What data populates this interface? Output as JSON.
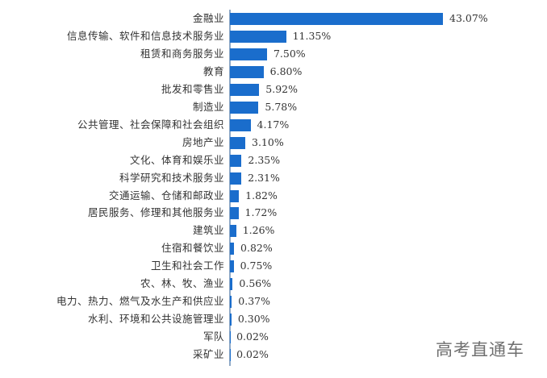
{
  "chart_data": {
    "type": "bar",
    "orientation": "horizontal",
    "title": "",
    "xlabel": "",
    "ylabel": "",
    "grid": false,
    "legend": null,
    "bar_color": "#1a6dcc",
    "value_format": "percent",
    "categories": [
      "金融业",
      "信息传输、软件和信息技术服务业",
      "租赁和商务服务业",
      "教育",
      "批发和零售业",
      "制造业",
      "公共管理、社会保障和社会组织",
      "房地产业",
      "文化、体育和娱乐业",
      "科学研究和技术服务业",
      "交通运输、仓储和邮政业",
      "居民服务、修理和其他服务业",
      "建筑业",
      "住宿和餐饮业",
      "卫生和社会工作",
      "农、林、牧、渔业",
      "电力、热力、燃气及水生产和供应业",
      "水利、环境和公共设施管理业",
      "军队",
      "采矿业"
    ],
    "values": [
      43.07,
      11.35,
      7.5,
      6.8,
      5.92,
      5.78,
      4.17,
      3.1,
      2.35,
      2.31,
      1.82,
      1.72,
      1.26,
      0.82,
      0.75,
      0.56,
      0.37,
      0.3,
      0.02,
      0.02
    ],
    "value_labels": [
      "43.07%",
      "11.35%",
      "7.50%",
      "6.80%",
      "5.92%",
      "5.78%",
      "4.17%",
      "3.10%",
      "2.35%",
      "2.31%",
      "1.82%",
      "1.72%",
      "1.26%",
      "0.82%",
      "0.75%",
      "0.56%",
      "0.37%",
      "0.30%",
      "0.02%",
      "0.02%"
    ]
  },
  "watermark": "高考直通车"
}
